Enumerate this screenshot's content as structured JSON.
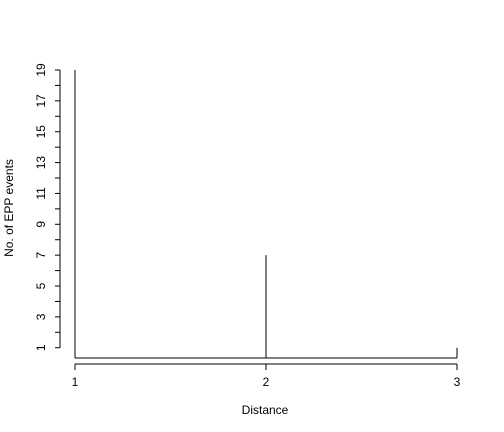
{
  "chart_data": {
    "type": "bar",
    "style": "histogram-spikes",
    "title": "",
    "xlabel": "Distance",
    "ylabel": "No. of EPP events",
    "x": [
      1,
      2,
      3
    ],
    "values": [
      19,
      7,
      1
    ],
    "xlim": [
      1,
      3
    ],
    "ylim": [
      0.4,
      19
    ],
    "x_ticks": [
      "1",
      "2",
      "3"
    ],
    "y_ticks": [
      1,
      2,
      3,
      4,
      5,
      6,
      7,
      8,
      9,
      10,
      11,
      12,
      13,
      14,
      15,
      16,
      17,
      18,
      19
    ],
    "y_tick_labels": [
      "1",
      "3",
      "5",
      "7",
      "9",
      "11",
      "13",
      "15",
      "17",
      "19"
    ],
    "grid": false,
    "line_color": "#000000"
  }
}
